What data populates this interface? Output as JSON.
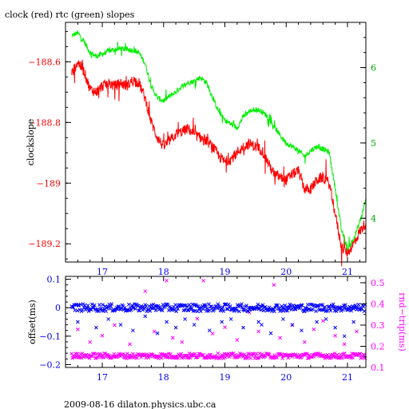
{
  "title": "clock (red) rtc (green) slopes",
  "footer": "2009-08-16 dilaton.physics.ubc.ca",
  "colors": {
    "clock": "#ff0000",
    "rtc": "#00ee00",
    "offset": "#0000ff",
    "roundtrip": "#ff00ff",
    "frame": "#000000"
  },
  "chart_data": [
    {
      "type": "line",
      "title": "clock (red) rtc (green) slopes",
      "ylabel": "clockslope",
      "xlim": [
        16.4,
        21.3
      ],
      "ylim": [
        -189.26,
        -188.47
      ],
      "y2lim": [
        3.42,
        6.6
      ],
      "x_ticks": [
        17,
        18,
        19,
        20,
        21
      ],
      "y_ticks": [
        -188.6,
        -188.8,
        -189,
        -189.2
      ],
      "y_tick_labels": [
        "−188.6",
        "−188.8",
        "−189",
        "−189.2"
      ],
      "y2_ticks": [
        4,
        5,
        6
      ],
      "series": [
        {
          "name": "clock",
          "axis": "left",
          "x": [
            16.5,
            16.6,
            16.7,
            16.8,
            16.9,
            17.0,
            17.1,
            17.2,
            17.3,
            17.4,
            17.5,
            17.6,
            17.7,
            17.8,
            17.9,
            18.0,
            18.1,
            18.2,
            18.3,
            18.4,
            18.5,
            18.6,
            18.7,
            18.8,
            18.9,
            19.0,
            19.1,
            19.2,
            19.3,
            19.4,
            19.5,
            19.6,
            19.7,
            19.8,
            19.9,
            20.0,
            20.1,
            20.2,
            20.3,
            20.4,
            20.5,
            20.6,
            20.7,
            20.8,
            20.9,
            21.0,
            21.1,
            21.2,
            21.3
          ],
          "y": [
            -188.64,
            -188.6,
            -188.63,
            -188.69,
            -188.7,
            -188.68,
            -188.67,
            -188.68,
            -188.67,
            -188.68,
            -188.66,
            -188.67,
            -188.72,
            -188.8,
            -188.85,
            -188.88,
            -188.86,
            -188.84,
            -188.83,
            -188.82,
            -188.84,
            -188.85,
            -188.86,
            -188.88,
            -188.91,
            -188.93,
            -188.92,
            -188.9,
            -188.88,
            -188.87,
            -188.88,
            -188.89,
            -188.93,
            -188.97,
            -188.98,
            -188.99,
            -188.97,
            -188.96,
            -189.02,
            -189.02,
            -188.99,
            -188.98,
            -189.0,
            -189.1,
            -189.21,
            -189.23,
            -189.2,
            -189.16,
            -189.13
          ]
        },
        {
          "name": "rtc",
          "axis": "right",
          "x": [
            16.5,
            16.6,
            16.7,
            16.8,
            16.9,
            17.0,
            17.1,
            17.2,
            17.3,
            17.4,
            17.5,
            17.6,
            17.7,
            17.8,
            17.9,
            18.0,
            18.1,
            18.2,
            18.3,
            18.4,
            18.5,
            18.6,
            18.7,
            18.8,
            18.9,
            19.0,
            19.1,
            19.2,
            19.3,
            19.4,
            19.5,
            19.6,
            19.7,
            19.8,
            19.9,
            20.0,
            20.1,
            20.2,
            20.3,
            20.4,
            20.5,
            20.6,
            20.7,
            20.8,
            20.9,
            21.0,
            21.1,
            21.2,
            21.3
          ],
          "y": [
            6.42,
            6.46,
            6.35,
            6.2,
            6.15,
            6.18,
            6.22,
            6.24,
            6.25,
            6.24,
            6.23,
            6.2,
            6.05,
            5.75,
            5.6,
            5.56,
            5.62,
            5.68,
            5.75,
            5.8,
            5.82,
            5.87,
            5.8,
            5.6,
            5.42,
            5.3,
            5.25,
            5.2,
            5.35,
            5.42,
            5.45,
            5.42,
            5.35,
            5.22,
            5.1,
            5.0,
            4.95,
            4.9,
            4.82,
            4.9,
            4.95,
            4.92,
            4.88,
            4.4,
            3.85,
            3.6,
            3.72,
            3.95,
            4.25
          ]
        }
      ]
    },
    {
      "type": "scatter",
      "ylabel": "offset(ms)",
      "y2label": "rnd−trip(ms)",
      "xlim": [
        16.4,
        21.3
      ],
      "ylim": [
        -0.21,
        0.11
      ],
      "y2lim": [
        0.1,
        0.53
      ],
      "x_ticks": [
        17,
        18,
        19,
        20,
        21
      ],
      "y_ticks": [
        0.1,
        0,
        -0.1,
        -0.2
      ],
      "y_tick_labels": [
        "0.1",
        "0",
        "−0.1",
        "−0.2"
      ],
      "y2_ticks": [
        0.1,
        0.2,
        0.3,
        0.4,
        0.5
      ],
      "series": [
        {
          "name": "offset",
          "axis": "left",
          "band_center": 0.0,
          "band_halfwidth": 0.013,
          "outliers": {
            "x": [
              16.6,
              16.9,
              17.1,
              17.3,
              17.5,
              17.7,
              17.9,
              18.05,
              18.2,
              18.35,
              18.5,
              18.75,
              18.95,
              19.1,
              19.3,
              19.55,
              19.6,
              19.75,
              19.95,
              20.1,
              20.25,
              20.5,
              20.65,
              20.8,
              20.95,
              21.1
            ],
            "y": [
              -0.05,
              -0.07,
              -0.04,
              -0.06,
              -0.08,
              -0.03,
              -0.09,
              -0.05,
              -0.07,
              -0.04,
              -0.06,
              -0.08,
              -0.05,
              -0.04,
              -0.07,
              -0.05,
              -0.06,
              -0.09,
              -0.04,
              -0.06,
              -0.08,
              -0.05,
              -0.04,
              -0.07,
              -0.1,
              -0.05
            ]
          }
        },
        {
          "name": "round-trip",
          "axis": "right",
          "band_center": 0.155,
          "band_halfwidth": 0.012,
          "outliers": {
            "x": [
              16.6,
              16.8,
              17.0,
              17.2,
              17.45,
              17.7,
              17.85,
              18.05,
              18.15,
              18.3,
              18.55,
              18.65,
              18.8,
              19.0,
              19.2,
              19.4,
              19.55,
              19.8,
              19.9,
              20.1,
              20.3,
              20.45,
              20.6,
              20.8,
              20.95,
              21.15
            ],
            "y": [
              0.28,
              0.22,
              0.25,
              0.3,
              0.21,
              0.46,
              0.27,
              0.51,
              0.24,
              0.22,
              0.33,
              0.51,
              0.26,
              0.29,
              0.23,
              0.36,
              0.27,
              0.49,
              0.24,
              0.3,
              0.22,
              0.28,
              0.32,
              0.25,
              0.21,
              0.27
            ]
          }
        }
      ]
    }
  ]
}
